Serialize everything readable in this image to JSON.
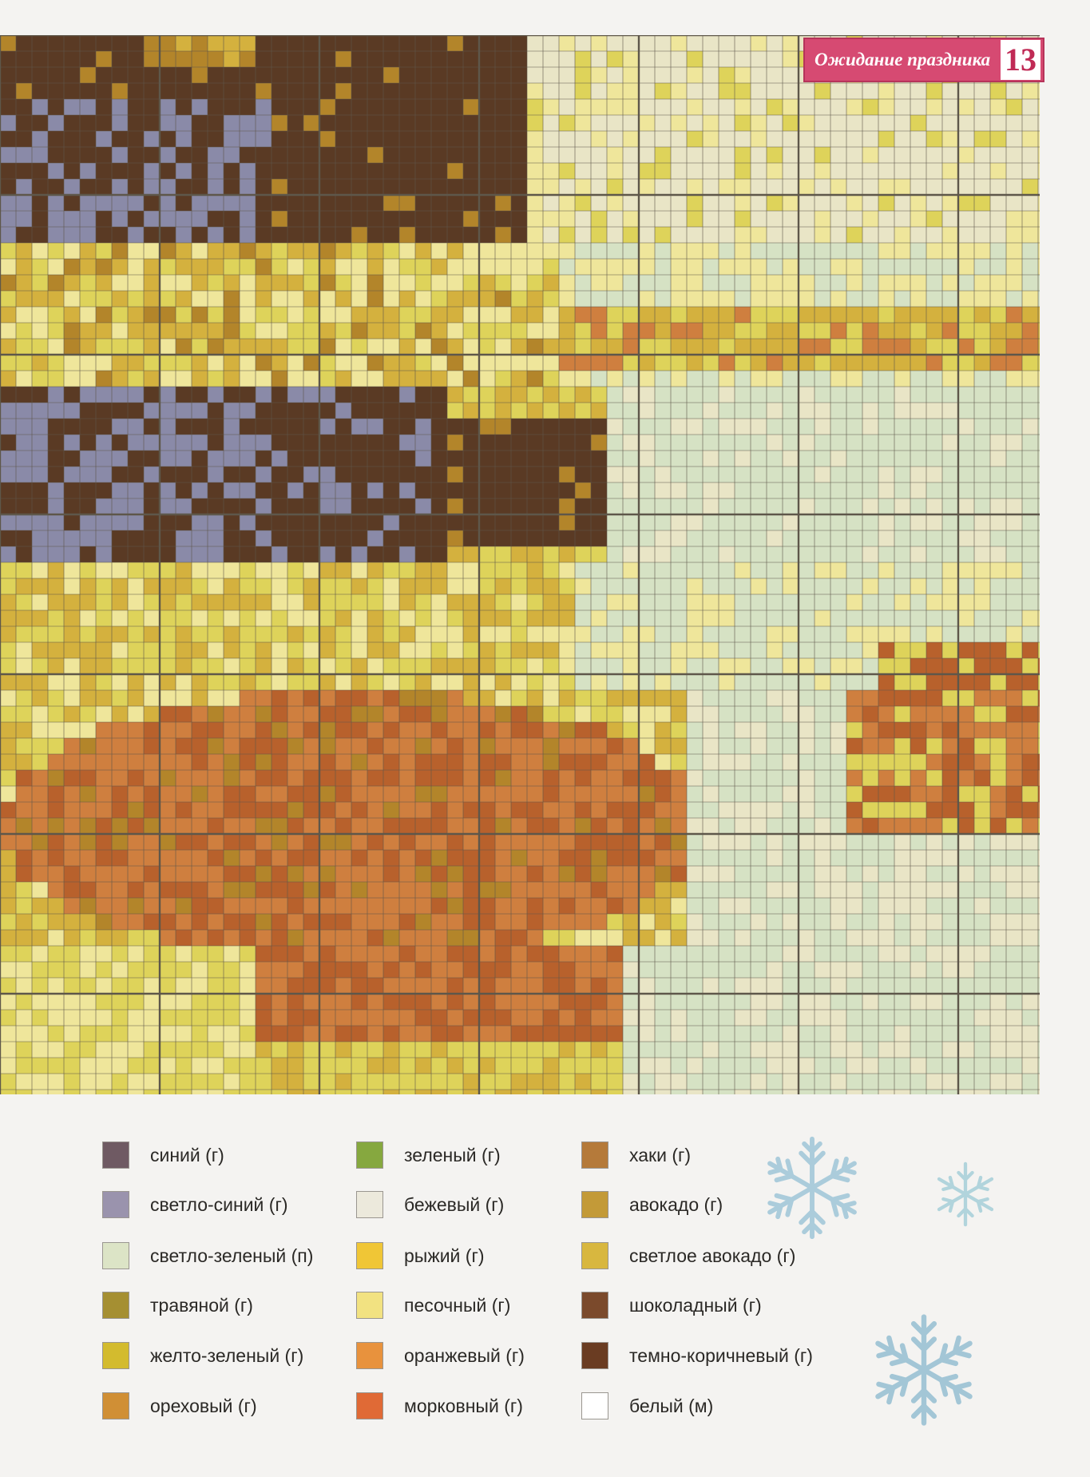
{
  "header": {
    "title": "Ожидание праздника",
    "page_number": "13"
  },
  "pattern_colors": {
    "C": "#e9e5c6",
    "G": "#d6e2c4",
    "Y": "#efe69b",
    "S": "#ded35a",
    "O": "#d4b13e",
    "T": "#b3852a",
    "R": "#cf7f3f",
    "N": "#b8612c",
    "B": "#5a3a24",
    "V": "#8a8aa8",
    "grid_line": "#5e574a"
  },
  "legend": {
    "items": [
      {
        "label": "синий (г)",
        "color": "#6f5a63"
      },
      {
        "label": "светло-синий (г)",
        "color": "#9a93ad"
      },
      {
        "label": "светло-зеленый (п)",
        "color": "#dce4c6"
      },
      {
        "label": "травяной (г)",
        "color": "#a58f32"
      },
      {
        "label": "желто-зеленый (г)",
        "color": "#d3bb2e"
      },
      {
        "label": "ореховый (г)",
        "color": "#d08f35"
      },
      {
        "label": "зеленый (г)",
        "color": "#86a83f"
      },
      {
        "label": "бежевый (г)",
        "color": "#ece9dc"
      },
      {
        "label": "рыжий (г)",
        "color": "#f0c636"
      },
      {
        "label": "песочный (г)",
        "color": "#f2e281"
      },
      {
        "label": "оранжевый (г)",
        "color": "#e8923d"
      },
      {
        "label": "морковный (г)",
        "color": "#e06a36"
      },
      {
        "label": "хаки (г)",
        "color": "#b57a3a"
      },
      {
        "label": "авокадо (г)",
        "color": "#c39a38"
      },
      {
        "label": "светлое авокадо (г)",
        "color": "#d8b73f"
      },
      {
        "label": "шоколадный (г)",
        "color": "#7b4a2c"
      },
      {
        "label": "темно-коричневый (г)",
        "color": "#6a3c22"
      },
      {
        "label": "белый (м)",
        "color": "#ffffff"
      }
    ]
  }
}
